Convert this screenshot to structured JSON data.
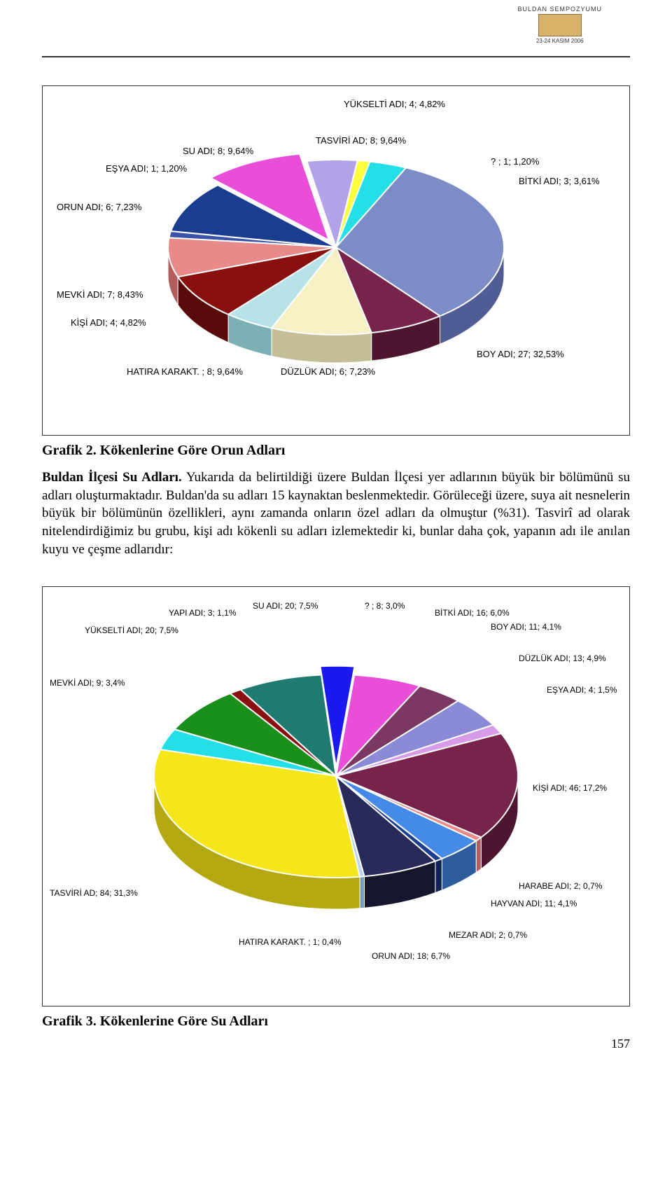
{
  "header": {
    "logo_arc_top": "BULDAN SEMPOZYUMU",
    "logo_date": "23-24 KASIM 2006"
  },
  "chart1": {
    "type": "pie-3d",
    "labels": {
      "yukselti": "YÜKSELTİ ADI; 4; 4,82%",
      "tasviri": "TASVİRİ AD; 8; 9,64%",
      "su": "SU ADI; 8; 9,64%",
      "esya": "EŞYA ADI; 1; 1,20%",
      "orun": "ORUN ADI; 6; 7,23%",
      "mevki": "MEVKİ ADI; 7; 8,43%",
      "kisi": "KİŞİ ADI; 4; 4,82%",
      "hatira": "HATIRA KARAKT. ; 8; 9,64%",
      "duzluk": "DÜZLÜK ADI; 6; 7,23%",
      "boy": "BOY ADI; 27; 32,53%",
      "unknown": "? ; 1; 1,20%",
      "bitki": "BİTKİ ADI; 3; 3,61%"
    },
    "slices": [
      {
        "name": "YÜKSELTİ ADI",
        "pct": 4.82,
        "color": "#b3a2e8",
        "side": "#7a6bb0"
      },
      {
        "name": "?",
        "pct": 1.2,
        "color": "#ffff3b",
        "side": "#c4c42d"
      },
      {
        "name": "BİTKİ ADI",
        "pct": 3.61,
        "color": "#24e0e6",
        "side": "#179ea3"
      },
      {
        "name": "BOY ADI",
        "pct": 32.53,
        "color": "#7b8cc6",
        "side": "#4f5d94"
      },
      {
        "name": "DÜZLÜK ADI",
        "pct": 7.23,
        "color": "#78234b",
        "side": "#4e1530"
      },
      {
        "name": "HATIRA",
        "pct": 9.64,
        "color": "#f6f0c4",
        "side": "#c4be96"
      },
      {
        "name": "KİŞİ ADI",
        "pct": 4.82,
        "color": "#b7e3e6",
        "side": "#7ab0b4"
      },
      {
        "name": "MEVKİ ADI",
        "pct": 8.43,
        "color": "#8a1010",
        "side": "#5a0a0a"
      },
      {
        "name": "ORUN ADI",
        "pct": 7.23,
        "color": "#e88a8a",
        "side": "#b35e5e"
      },
      {
        "name": "EŞYA ADI",
        "pct": 1.2,
        "color": "#3a52a8",
        "side": "#243470"
      },
      {
        "name": "SU ADI",
        "pct": 9.64,
        "color": "#1a3d8f",
        "side": "#102356"
      },
      {
        "name": "TASVİRİ AD",
        "pct": 9.64,
        "color": "#e84ed8",
        "side": "#a8349c"
      }
    ],
    "explode_index": 11,
    "background_color": "#ffffff",
    "border_color": "#333333",
    "label_fontsize": 13
  },
  "caption1": "Grafik 2. Kökenlerine Göre Orun Adları",
  "paragraph_bold": "Buldan İlçesi Su Adları.",
  "paragraph_body": " Yukarıda da belirtildiği üzere Buldan İlçesi yer adlarının büyük bir bölümünü su adları oluşturmaktadır. Buldan'da su adları 15 kaynaktan beslenmektedir. Görüleceği üzere, suya ait nesnelerin büyük bir bölümünün özellikleri, aynı zamanda onların özel adları da olmuştur (%31). Tasvirî ad olarak nitelendirdiğimiz bu grubu, kişi adı kökenli su adları izlemektedir ki, bunlar daha çok, yapanın adı ile anılan kuyu ve çeşme adlarıdır:",
  "chart2": {
    "type": "pie-3d",
    "labels": {
      "su": "SU ADI; 20; 7,5%",
      "yapi": "YAPI ADI; 3; 1,1%",
      "yukselti": "YÜKSELTİ ADI; 20; 7,5%",
      "mevki": "MEVKİ ADI; 9; 3,4%",
      "tasviri": "TASVİRİ AD; 84; 31,3%",
      "unknown": "? ; 8; 3,0%",
      "bitki": "BİTKİ ADI; 16; 6,0%",
      "boy": "BOY ADI; 11; 4,1%",
      "duzluk": "DÜZLÜK ADI; 13; 4,9%",
      "esya": "EŞYA ADI; 4; 1,5%",
      "kisi": "KİŞİ ADI; 46; 17,2%",
      "harabe": "HARABE ADI; 2; 0,7%",
      "hayvan": "HAYVAN ADI; 11; 4,1%",
      "mezar": "MEZAR ADI; 2; 0,7%",
      "orun": "ORUN ADI; 18; 6,7%",
      "hatira": "HATIRA KARAKT. ; 1; 0,4%"
    },
    "slices": [
      {
        "name": "?",
        "pct": 3.0,
        "color": "#1a1af0",
        "side": "#0f0f96"
      },
      {
        "name": "BİTKİ ADI",
        "pct": 6.0,
        "color": "#e84ed8",
        "side": "#a8349c"
      },
      {
        "name": "BOY ADI",
        "pct": 4.1,
        "color": "#7b3863",
        "side": "#532442"
      },
      {
        "name": "DÜZLÜK ADI",
        "pct": 4.9,
        "color": "#8a8ad6",
        "side": "#5a5a9c"
      },
      {
        "name": "EŞYA ADI",
        "pct": 1.5,
        "color": "#d89be8",
        "side": "#9c6aa8"
      },
      {
        "name": "KİŞİ ADI",
        "pct": 17.2,
        "color": "#78234b",
        "side": "#4e1530"
      },
      {
        "name": "HARABE ADI",
        "pct": 0.7,
        "color": "#e88a8a",
        "side": "#b35e5e"
      },
      {
        "name": "HAYVAN ADI",
        "pct": 4.1,
        "color": "#468ae8",
        "side": "#2d5c9e"
      },
      {
        "name": "MEZAR ADI",
        "pct": 0.7,
        "color": "#1a3d8f",
        "side": "#102356"
      },
      {
        "name": "ORUN ADI",
        "pct": 6.7,
        "color": "#2a2a5a",
        "side": "#16162e"
      },
      {
        "name": "HATIRA",
        "pct": 0.4,
        "color": "#b8d6f0",
        "side": "#7a9bb8"
      },
      {
        "name": "TASVİRİ AD",
        "pct": 31.3,
        "color": "#f5e619",
        "side": "#b3a810"
      },
      {
        "name": "MEVKİ ADI",
        "pct": 3.4,
        "color": "#24e0e6",
        "side": "#179ea3"
      },
      {
        "name": "YÜKSELTİ ADI",
        "pct": 7.5,
        "color": "#1a8f1a",
        "side": "#105610"
      },
      {
        "name": "YAPI ADI",
        "pct": 1.1,
        "color": "#8a1010",
        "side": "#5a0a0a"
      },
      {
        "name": "SU ADI",
        "pct": 7.5,
        "color": "#1f7a6f",
        "side": "#13504a"
      }
    ],
    "explode_index": 0,
    "background_color": "#ffffff",
    "border_color": "#333333",
    "label_fontsize": 12
  },
  "caption2": "Grafik 3. Kökenlerine Göre Su Adları",
  "page_number": "157"
}
